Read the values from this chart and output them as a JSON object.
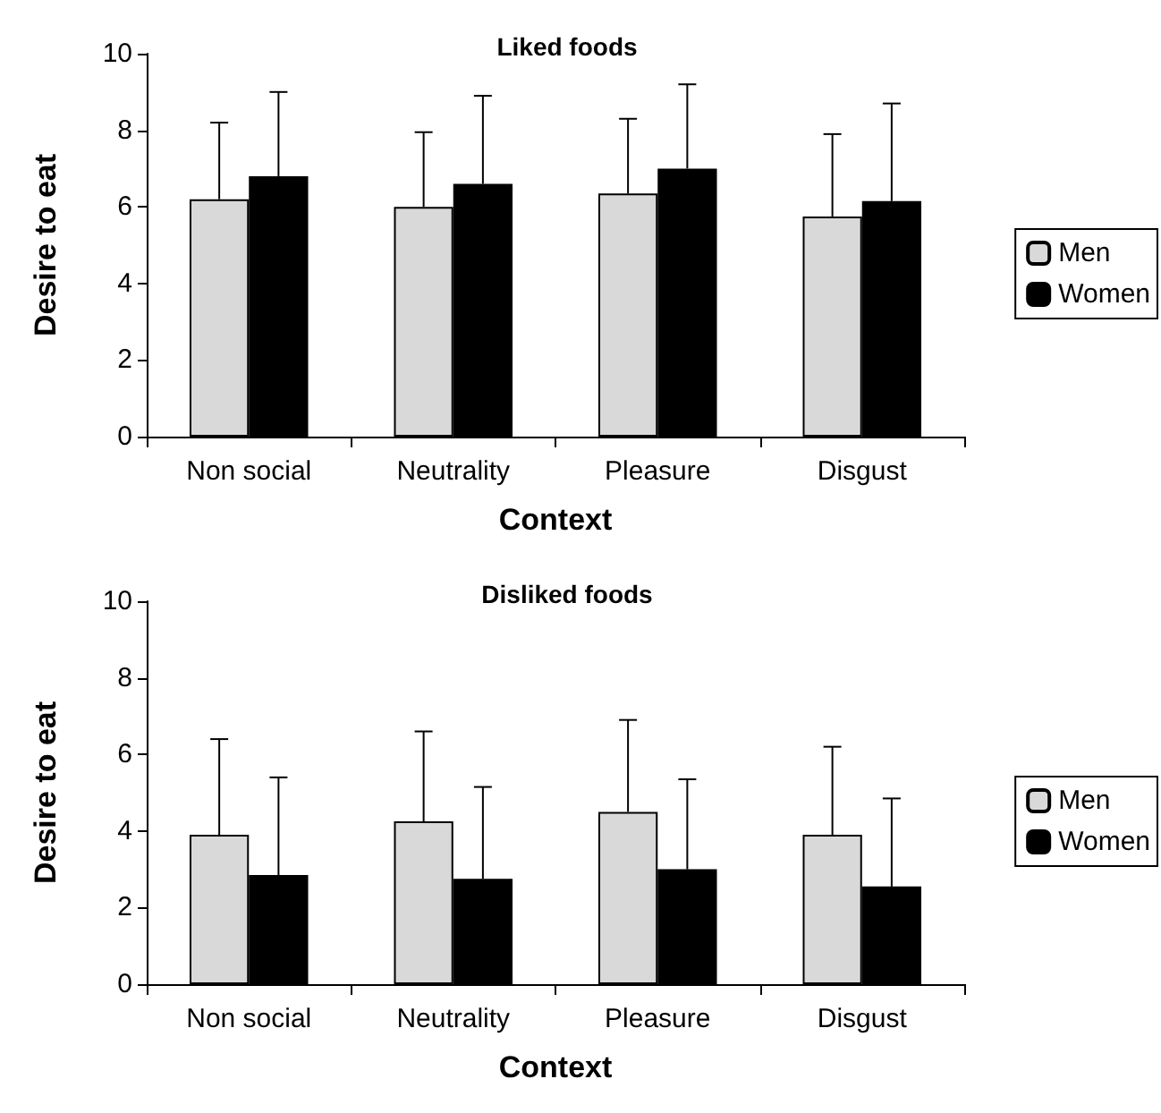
{
  "chart_data": [
    {
      "type": "bar",
      "title": "Liked foods",
      "xlabel": "Context",
      "ylabel": "Desire to eat",
      "categories": [
        "Non social",
        "Neutrality",
        "Pleasure",
        "Disgust"
      ],
      "series": [
        {
          "name": "Men",
          "color": "#d9d9d9",
          "values": [
            6.2,
            6.0,
            6.35,
            5.75
          ],
          "errors": [
            [
              6.2,
              8.2
            ],
            [
              6.0,
              7.95
            ],
            [
              6.35,
              8.3
            ],
            [
              5.75,
              7.9
            ]
          ]
        },
        {
          "name": "Women",
          "color": "#000000",
          "values": [
            6.8,
            6.6,
            7.0,
            6.15
          ],
          "errors": [
            [
              6.8,
              9.0
            ],
            [
              6.6,
              8.9
            ],
            [
              7.0,
              9.2
            ],
            [
              6.15,
              8.7
            ]
          ]
        }
      ],
      "ylim": [
        0,
        10
      ],
      "yticks": [
        0,
        2,
        4,
        6,
        8,
        10
      ],
      "grid": false,
      "legend": "right"
    },
    {
      "type": "bar",
      "title": "Disliked foods",
      "xlabel": "Context",
      "ylabel": "Desire to eat",
      "categories": [
        "Non social",
        "Neutrality",
        "Pleasure",
        "Disgust"
      ],
      "series": [
        {
          "name": "Men",
          "color": "#d9d9d9",
          "values": [
            3.9,
            4.25,
            4.5,
            3.9
          ],
          "errors": [
            [
              3.9,
              6.4
            ],
            [
              4.25,
              6.6
            ],
            [
              4.5,
              6.9
            ],
            [
              3.9,
              6.2
            ]
          ]
        },
        {
          "name": "Women",
          "color": "#000000",
          "values": [
            2.85,
            2.75,
            3.0,
            2.55
          ],
          "errors": [
            [
              2.85,
              5.4
            ],
            [
              2.75,
              5.15
            ],
            [
              3.0,
              5.35
            ],
            [
              2.55,
              4.85
            ]
          ]
        }
      ],
      "ylim": [
        0,
        10
      ],
      "yticks": [
        0,
        2,
        4,
        6,
        8,
        10
      ],
      "grid": false,
      "legend": "right"
    }
  ]
}
